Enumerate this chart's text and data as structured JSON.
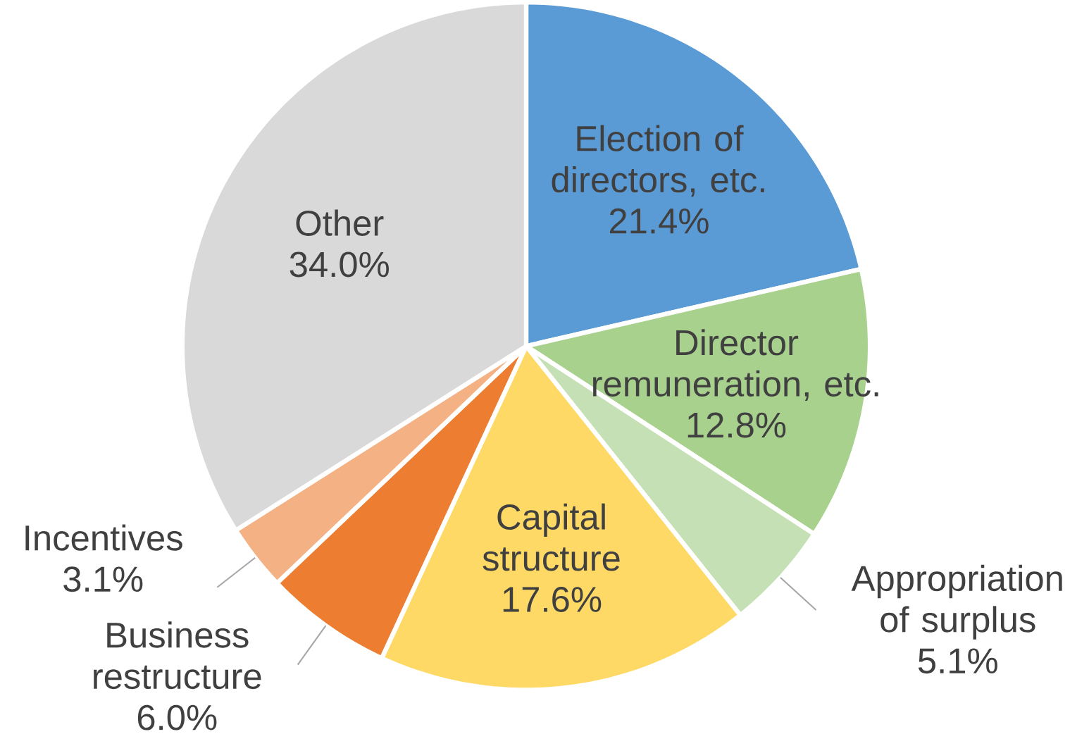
{
  "chart_data": {
    "type": "pie",
    "categories": [
      "Election of directors, etc.",
      "Director remuneration, etc.",
      "Appropriation of surplus",
      "Capital structure",
      "Business restructure",
      "Incentives",
      "Other"
    ],
    "values": [
      21.4,
      12.8,
      5.1,
      17.6,
      6.0,
      3.1,
      34.0
    ],
    "value_labels": [
      "21.4%",
      "12.8%",
      "5.1%",
      "17.6%",
      "6.0%",
      "3.1%",
      "34.0%"
    ],
    "colors": [
      "#5b9bd5",
      "#a9d18e",
      "#c5e0b4",
      "#ffd966",
      "#ed7d31",
      "#f4b183",
      "#d9d9d9"
    ]
  }
}
